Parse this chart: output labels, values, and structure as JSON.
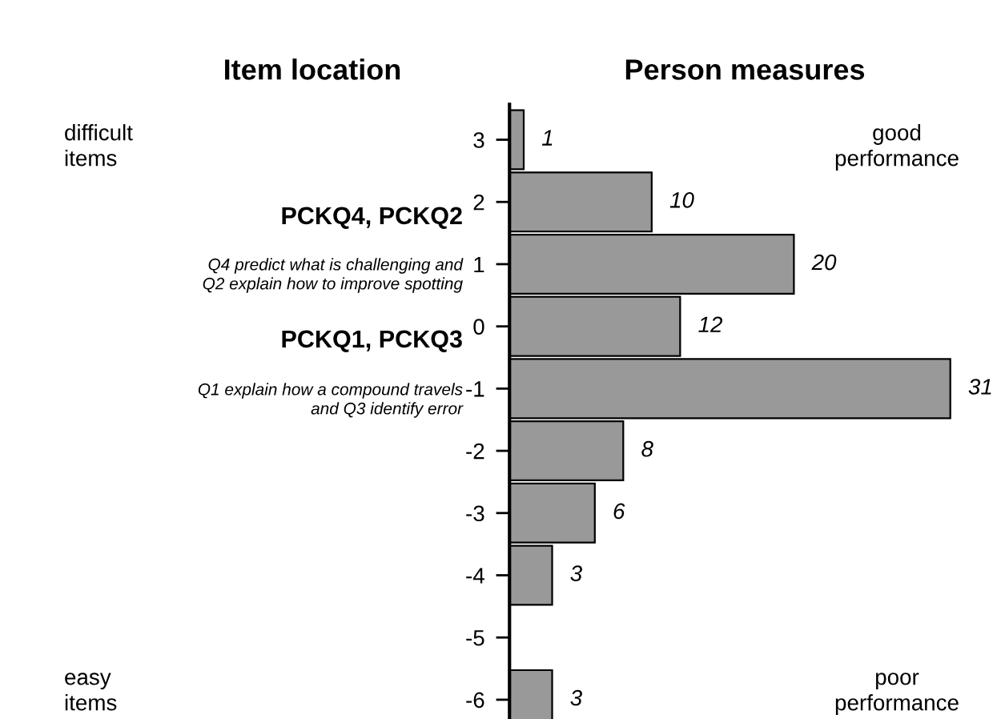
{
  "chart_data": {
    "type": "bar",
    "orientation": "horizontal",
    "title": "Person measures",
    "categories": [
      "3",
      "2",
      "1",
      "0",
      "-1",
      "-2",
      "-3",
      "-4",
      "-5",
      "-6"
    ],
    "values": [
      1,
      10,
      20,
      12,
      31,
      8,
      6,
      3,
      null,
      3
    ],
    "color": "#999999",
    "data_labels": true,
    "grid": false,
    "legend": false,
    "tick_labels": "y",
    "annotations": [
      "Item location",
      "difficult\nitems",
      "PCKQ4, PCKQ2",
      "Q4 predict what is challenging and\nQ2 explain how to improve spotting",
      "PCKQ1, PCKQ3",
      "Q1 explain how a compound travels\nand Q3 identify error",
      "easy\nitems",
      "good\nperformance",
      "poor\nperformance"
    ]
  }
}
